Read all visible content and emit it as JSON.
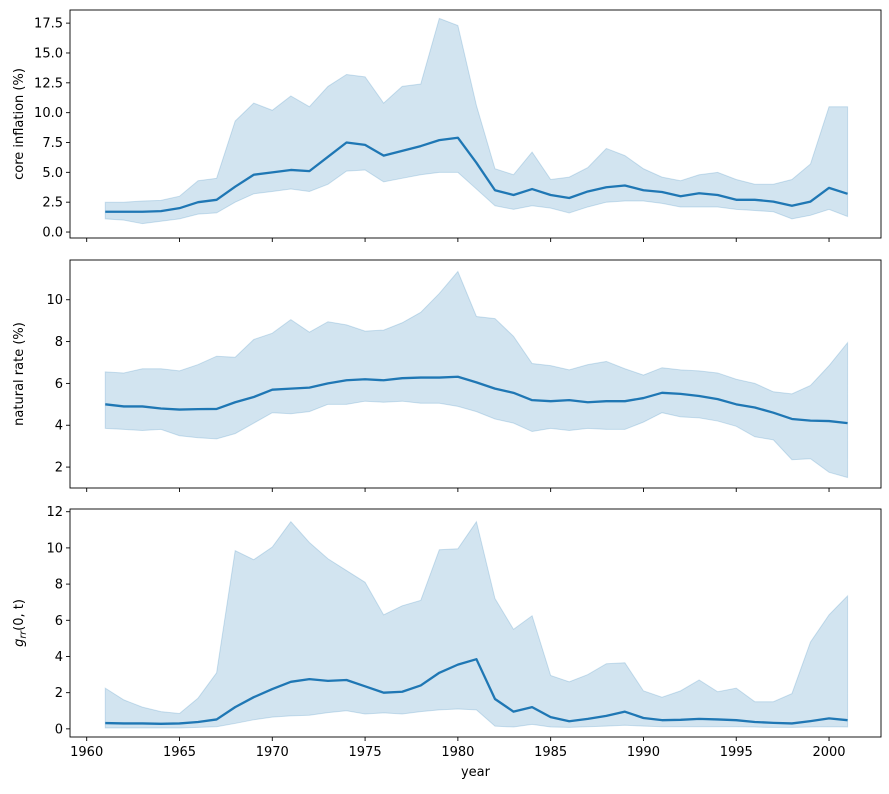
{
  "chart_data": [
    {
      "type": "area",
      "ylabel": "core inflation (%)",
      "ylabel_math": false,
      "ylim": [
        -0.5,
        18.6
      ],
      "yticks": [
        0.0,
        2.5,
        5.0,
        7.5,
        10.0,
        12.5,
        15.0,
        17.5
      ],
      "ytick_labels": [
        "0.0",
        "2.5",
        "5.0",
        "7.5",
        "10.0",
        "12.5",
        "15.0",
        "17.5"
      ],
      "xlim": [
        1959.1,
        2002.8
      ],
      "show_xticklabels": false,
      "x": [
        1961,
        1962,
        1963,
        1964,
        1965,
        1966,
        1967,
        1968,
        1969,
        1970,
        1971,
        1972,
        1973,
        1974,
        1975,
        1976,
        1977,
        1978,
        1979,
        1980,
        1981,
        1982,
        1983,
        1984,
        1985,
        1986,
        1987,
        1988,
        1989,
        1990,
        1991,
        1992,
        1993,
        1994,
        1995,
        1996,
        1997,
        1998,
        1999,
        2000,
        2001
      ],
      "series": [
        {
          "role": "median",
          "values": [
            1.7,
            1.7,
            1.7,
            1.75,
            2.0,
            2.5,
            2.7,
            3.8,
            4.8,
            5.0,
            5.2,
            5.1,
            6.3,
            7.5,
            7.3,
            6.4,
            6.8,
            7.2,
            7.7,
            7.9,
            5.8,
            3.5,
            3.1,
            3.6,
            3.1,
            2.85,
            3.4,
            3.75,
            3.9,
            3.5,
            3.35,
            3.0,
            3.25,
            3.1,
            2.7,
            2.7,
            2.55,
            2.2,
            2.55,
            3.7,
            3.2
          ]
        },
        {
          "role": "lower",
          "values": [
            1.1,
            1.0,
            0.7,
            0.9,
            1.1,
            1.5,
            1.6,
            2.5,
            3.2,
            3.4,
            3.6,
            3.4,
            4.0,
            5.1,
            5.2,
            4.2,
            4.5,
            4.8,
            5.0,
            5.0,
            3.6,
            2.2,
            1.9,
            2.2,
            2.0,
            1.6,
            2.1,
            2.5,
            2.6,
            2.6,
            2.4,
            2.1,
            2.1,
            2.1,
            1.9,
            1.8,
            1.7,
            1.1,
            1.4,
            1.9,
            1.3
          ]
        },
        {
          "role": "upper",
          "values": [
            2.5,
            2.5,
            2.6,
            2.65,
            3.0,
            4.3,
            4.5,
            9.3,
            10.8,
            10.2,
            11.4,
            10.5,
            12.2,
            13.2,
            13.0,
            10.8,
            12.2,
            12.4,
            17.9,
            17.3,
            10.6,
            5.3,
            4.8,
            6.7,
            4.4,
            4.6,
            5.4,
            7.0,
            6.4,
            5.3,
            4.6,
            4.3,
            4.8,
            5.0,
            4.4,
            4.0,
            4.0,
            4.4,
            5.7,
            10.5,
            10.5
          ]
        }
      ]
    },
    {
      "type": "area",
      "ylabel": "natural rate (%)",
      "ylabel_math": false,
      "ylim": [
        1.0,
        11.9
      ],
      "yticks": [
        2,
        4,
        6,
        8,
        10
      ],
      "ytick_labels": [
        "2",
        "4",
        "6",
        "8",
        "10"
      ],
      "xlim": [
        1959.1,
        2002.8
      ],
      "show_xticklabels": false,
      "x": [
        1961,
        1962,
        1963,
        1964,
        1965,
        1966,
        1967,
        1968,
        1969,
        1970,
        1971,
        1972,
        1973,
        1974,
        1975,
        1976,
        1977,
        1978,
        1979,
        1980,
        1981,
        1982,
        1983,
        1984,
        1985,
        1986,
        1987,
        1988,
        1989,
        1990,
        1991,
        1992,
        1993,
        1994,
        1995,
        1996,
        1997,
        1998,
        1999,
        2000,
        2001
      ],
      "series": [
        {
          "role": "median",
          "values": [
            5.0,
            4.9,
            4.9,
            4.8,
            4.75,
            4.77,
            4.78,
            5.1,
            5.35,
            5.7,
            5.75,
            5.8,
            6.0,
            6.15,
            6.2,
            6.15,
            6.25,
            6.28,
            6.28,
            6.32,
            6.05,
            5.75,
            5.55,
            5.2,
            5.15,
            5.2,
            5.1,
            5.15,
            5.15,
            5.3,
            5.55,
            5.5,
            5.4,
            5.25,
            5.0,
            4.85,
            4.6,
            4.3,
            4.22,
            4.2,
            4.1
          ]
        },
        {
          "role": "lower",
          "values": [
            3.85,
            3.8,
            3.75,
            3.8,
            3.5,
            3.4,
            3.35,
            3.6,
            4.1,
            4.6,
            4.55,
            4.65,
            5.0,
            5.0,
            5.15,
            5.1,
            5.15,
            5.05,
            5.05,
            4.9,
            4.65,
            4.3,
            4.1,
            3.7,
            3.85,
            3.75,
            3.85,
            3.8,
            3.8,
            4.15,
            4.6,
            4.4,
            4.35,
            4.2,
            3.95,
            3.45,
            3.3,
            2.35,
            2.4,
            1.75,
            1.5
          ]
        },
        {
          "role": "upper",
          "values": [
            6.55,
            6.5,
            6.7,
            6.7,
            6.6,
            6.9,
            7.3,
            7.25,
            8.1,
            8.4,
            9.05,
            8.45,
            8.95,
            8.8,
            8.5,
            8.55,
            8.9,
            9.4,
            10.3,
            11.35,
            9.2,
            9.1,
            8.25,
            6.95,
            6.85,
            6.65,
            6.9,
            7.05,
            6.7,
            6.4,
            6.75,
            6.65,
            6.6,
            6.5,
            6.2,
            6.0,
            5.6,
            5.5,
            5.9,
            6.85,
            7.95
          ]
        }
      ]
    },
    {
      "type": "area",
      "ylabel": "g_rr(0, t)",
      "ylabel_math": true,
      "ylim": [
        -0.45,
        12.15
      ],
      "yticks": [
        0,
        2,
        4,
        6,
        8,
        10,
        12
      ],
      "ytick_labels": [
        "0",
        "2",
        "4",
        "6",
        "8",
        "10",
        "12"
      ],
      "xlim": [
        1959.1,
        2002.8
      ],
      "show_xticklabels": true,
      "xticks": [
        1960,
        1965,
        1970,
        1975,
        1980,
        1985,
        1990,
        1995,
        2000
      ],
      "xtick_labels": [
        "1960",
        "1965",
        "1970",
        "1975",
        "1980",
        "1985",
        "1990",
        "1995",
        "2000"
      ],
      "xlabel": "year",
      "x": [
        1961,
        1962,
        1963,
        1964,
        1965,
        1966,
        1967,
        1968,
        1969,
        1970,
        1971,
        1972,
        1973,
        1974,
        1975,
        1976,
        1977,
        1978,
        1979,
        1980,
        1981,
        1982,
        1983,
        1984,
        1985,
        1986,
        1987,
        1988,
        1989,
        1990,
        1991,
        1992,
        1993,
        1994,
        1995,
        1996,
        1997,
        1998,
        1999,
        2000,
        2001
      ],
      "series": [
        {
          "role": "median",
          "values": [
            0.32,
            0.3,
            0.3,
            0.28,
            0.3,
            0.38,
            0.52,
            1.2,
            1.75,
            2.2,
            2.6,
            2.75,
            2.65,
            2.7,
            2.35,
            2.0,
            2.05,
            2.4,
            3.1,
            3.55,
            3.85,
            1.65,
            0.95,
            1.2,
            0.65,
            0.42,
            0.55,
            0.72,
            0.95,
            0.6,
            0.48,
            0.5,
            0.55,
            0.52,
            0.48,
            0.38,
            0.33,
            0.3,
            0.43,
            0.58,
            0.48
          ]
        },
        {
          "role": "lower",
          "values": [
            0.05,
            0.05,
            0.05,
            0.05,
            0.05,
            0.08,
            0.12,
            0.3,
            0.5,
            0.65,
            0.72,
            0.75,
            0.9,
            1.0,
            0.82,
            0.88,
            0.82,
            0.95,
            1.05,
            1.1,
            1.05,
            0.15,
            0.1,
            0.25,
            0.1,
            0.08,
            0.12,
            0.15,
            0.2,
            0.15,
            0.12,
            0.12,
            0.12,
            0.12,
            0.12,
            0.1,
            0.08,
            0.08,
            0.1,
            0.12,
            0.1
          ]
        },
        {
          "role": "upper",
          "values": [
            2.25,
            1.6,
            1.2,
            0.95,
            0.85,
            1.7,
            3.1,
            9.85,
            9.35,
            10.05,
            11.45,
            10.3,
            9.4,
            8.75,
            8.1,
            6.3,
            6.8,
            7.1,
            9.9,
            9.95,
            11.45,
            7.2,
            5.5,
            6.25,
            2.95,
            2.6,
            3.0,
            3.6,
            3.65,
            2.1,
            1.75,
            2.1,
            2.7,
            2.05,
            2.25,
            1.5,
            1.5,
            1.95,
            4.8,
            6.3,
            7.35
          ]
        }
      ]
    }
  ]
}
